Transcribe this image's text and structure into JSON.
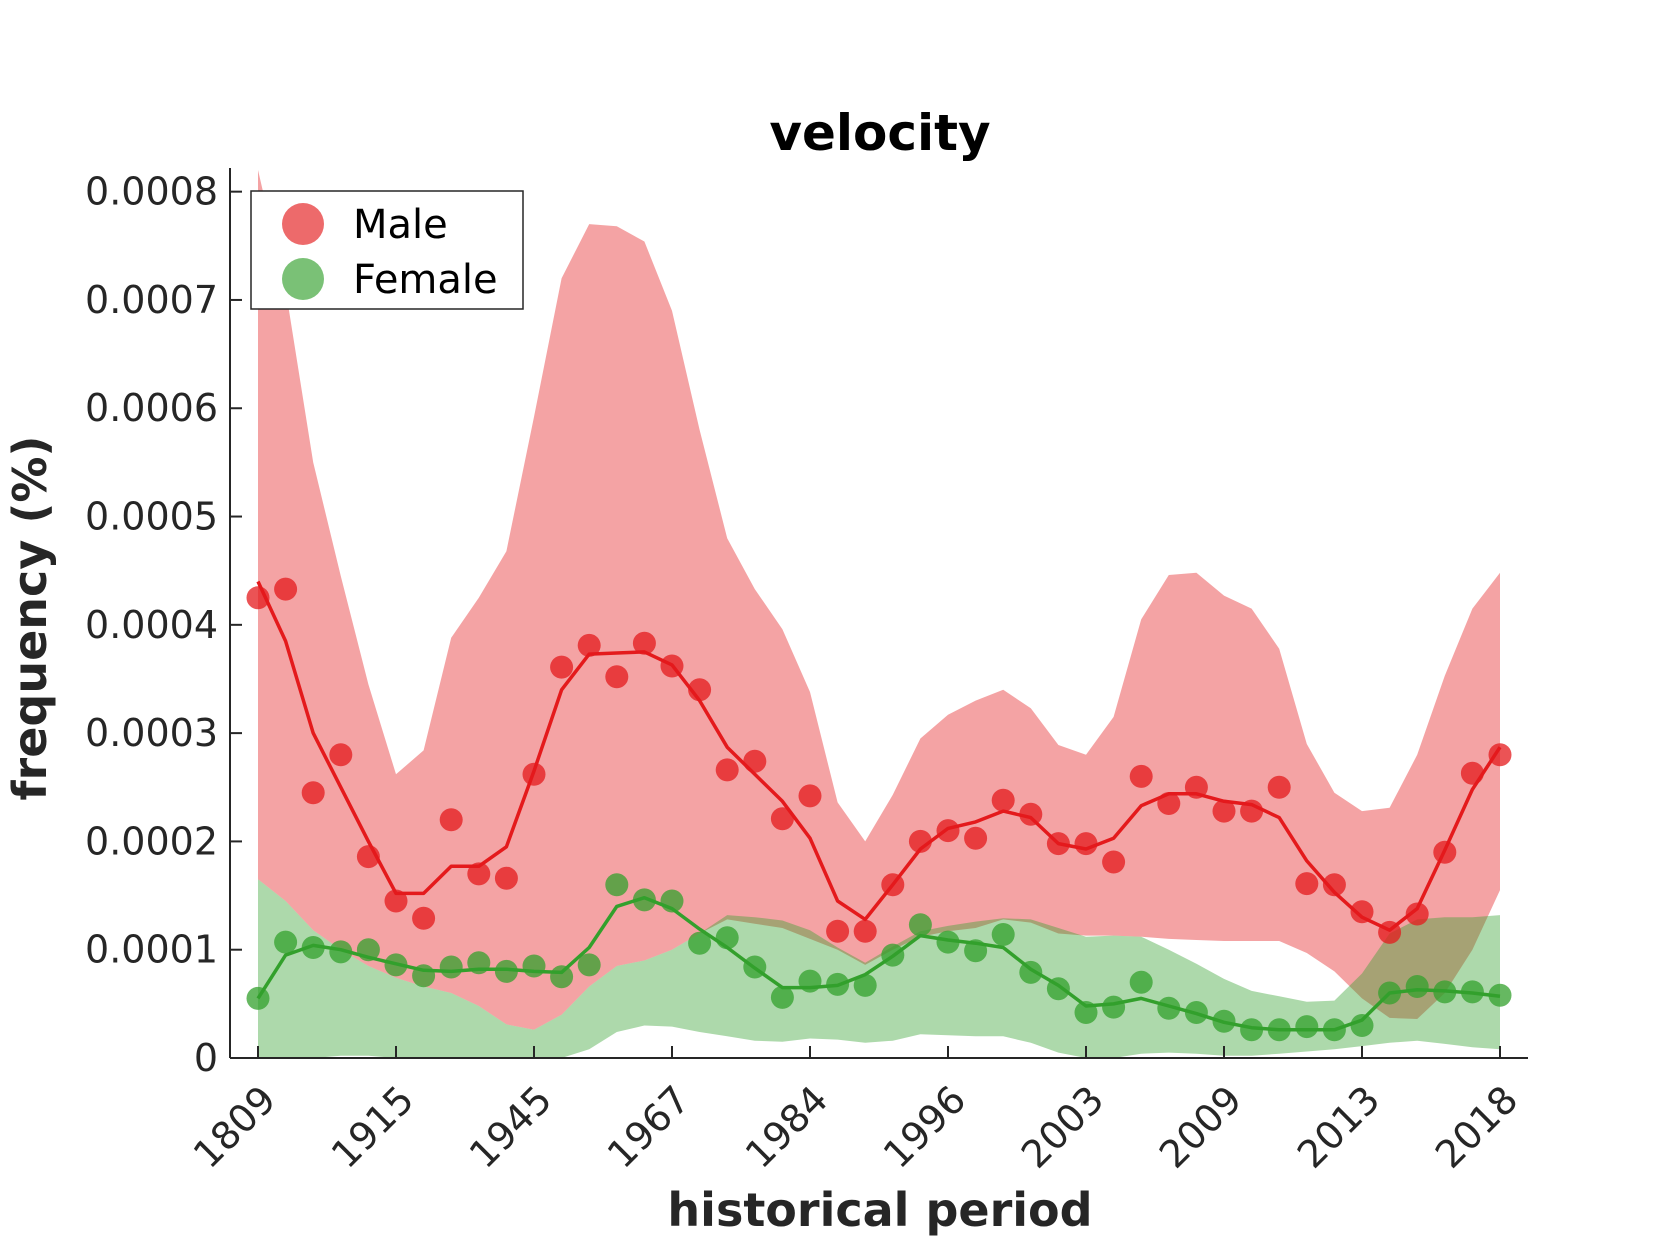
{
  "chart_data": {
    "type": "line",
    "title": "velocity",
    "xlabel": "historical period",
    "ylabel": "frequency (%)",
    "ylim": [
      0,
      0.00082
    ],
    "yticks": [
      0,
      0.0001,
      0.0002,
      0.0003,
      0.0004,
      0.0005,
      0.0006,
      0.0007,
      0.0008
    ],
    "ytick_labels": [
      "0",
      "0.0001",
      "0.0002",
      "0.0003",
      "0.0004",
      "0.0005",
      "0.0006",
      "0.0007",
      "0.0008"
    ],
    "x_tick_labels": [
      "1809",
      "1915",
      "1945",
      "1967",
      "1984",
      "1996",
      "2003",
      "2009",
      "2013",
      "2018"
    ],
    "x_tick_every": 5,
    "n_points": 46,
    "grid": false,
    "legend_position": "top-left",
    "series": [
      {
        "name": "Male",
        "color": "#e41a1c",
        "points": [
          0.000425,
          0.000433,
          0.000245,
          0.00028,
          0.000186,
          0.000145,
          0.000129,
          0.00022,
          0.00017,
          0.000166,
          0.000262,
          0.000361,
          0.000381,
          0.000352,
          0.000383,
          0.000362,
          0.00034,
          0.000266,
          0.000274,
          0.000221,
          0.000242,
          0.000117,
          0.000117,
          0.00016,
          0.0002,
          0.00021,
          0.000203,
          0.000238,
          0.000225,
          0.000198,
          0.000198,
          0.000181,
          0.00026,
          0.000235,
          0.00025,
          0.000228,
          0.000228,
          0.00025,
          0.000161,
          0.00016,
          0.000135,
          0.000116,
          0.000133,
          0.00019,
          0.000263,
          0.00028
        ],
        "trend": [
          0.00044,
          0.000385,
          0.0003,
          0.00025,
          0.0002,
          0.000152,
          0.000152,
          0.000177,
          0.000177,
          0.000195,
          0.000265,
          0.00034,
          0.000373,
          0.000374,
          0.000375,
          0.000363,
          0.00033,
          0.000287,
          0.000262,
          0.000237,
          0.000203,
          0.000145,
          0.000128,
          0.00016,
          0.000193,
          0.000212,
          0.000218,
          0.000228,
          0.000222,
          0.000198,
          0.000193,
          0.000203,
          0.000233,
          0.000244,
          0.000244,
          0.000237,
          0.000234,
          0.000222,
          0.000182,
          0.000153,
          0.00013,
          0.000118,
          0.000138,
          0.000192,
          0.000248,
          0.000287
        ],
        "band_upper": [
          0.00082,
          0.00071,
          0.00055,
          0.000445,
          0.000345,
          0.000262,
          0.000284,
          0.000388,
          0.000425,
          0.000468,
          0.000592,
          0.00072,
          0.00077,
          0.000768,
          0.000754,
          0.00069,
          0.00058,
          0.00048,
          0.000433,
          0.000396,
          0.000338,
          0.000236,
          0.0002,
          0.000243,
          0.000295,
          0.000317,
          0.00033,
          0.00034,
          0.000323,
          0.000289,
          0.00028,
          0.000315,
          0.000405,
          0.000446,
          0.000448,
          0.000427,
          0.000415,
          0.000378,
          0.00029,
          0.000245,
          0.000228,
          0.000231,
          0.00028,
          0.000353,
          0.000415,
          0.000448
        ],
        "band_lower": [
          0.000165,
          0.000145,
          0.000118,
          0.0001,
          8.5e-05,
          7.4e-05,
          6.6e-05,
          6e-05,
          4.8e-05,
          3.1e-05,
          2.6e-05,
          4e-05,
          6.6e-05,
          8.5e-05,
          9e-05,
          0.0001,
          0.000115,
          0.000128,
          0.000124,
          0.00012,
          0.00011,
          0.0001,
          8.6e-05,
          0.0001,
          0.000112,
          0.000117,
          0.00012,
          0.000128,
          0.000125,
          0.000115,
          0.000113,
          0.000113,
          0.000112,
          0.00011,
          0.000109,
          0.000108,
          0.000108,
          0.000108,
          9.7e-05,
          8e-05,
          5.5e-05,
          3.7e-05,
          3.6e-05,
          6e-05,
          0.0001,
          0.000155
        ]
      },
      {
        "name": "Female",
        "color": "#33a02c",
        "points": [
          5.5e-05,
          0.000107,
          0.000102,
          9.8e-05,
          0.0001,
          8.6e-05,
          7.6e-05,
          8.4e-05,
          8.8e-05,
          8e-05,
          8.5e-05,
          7.5e-05,
          8.6e-05,
          0.00016,
          0.000146,
          0.000145,
          0.000106,
          0.000111,
          8.4e-05,
          5.6e-05,
          7.1e-05,
          6.8e-05,
          6.7e-05,
          9.5e-05,
          0.000123,
          0.000107,
          9.9e-05,
          0.000114,
          7.9e-05,
          6.4e-05,
          4.2e-05,
          4.7e-05,
          7e-05,
          4.6e-05,
          4.2e-05,
          3.4e-05,
          2.6e-05,
          2.6e-05,
          2.9e-05,
          2.6e-05,
          3e-05,
          6e-05,
          6.6e-05,
          6.1e-05,
          6.1e-05,
          5.8e-05
        ],
        "trend": [
          5.5e-05,
          9.5e-05,
          0.000104,
          0.0001,
          9.3e-05,
          8.7e-05,
          8.1e-05,
          8e-05,
          8.2e-05,
          8.2e-05,
          8e-05,
          7.9e-05,
          0.000102,
          0.00014,
          0.000148,
          0.000138,
          0.000119,
          0.000102,
          8.3e-05,
          6.5e-05,
          6.5e-05,
          6.7e-05,
          7.7e-05,
          9.4e-05,
          0.000113,
          0.000109,
          0.000106,
          0.000102,
          8.2e-05,
          6.7e-05,
          4.8e-05,
          5e-05,
          5.5e-05,
          4.8e-05,
          4.1e-05,
          3.3e-05,
          2.8e-05,
          2.6e-05,
          2.6e-05,
          2.6e-05,
          3.5e-05,
          6e-05,
          6.3e-05,
          6.2e-05,
          6e-05,
          5.7e-05
        ],
        "band_upper": [
          0.000165,
          0.000145,
          0.000118,
          0.0001,
          8.5e-05,
          7.4e-05,
          6.6e-05,
          6e-05,
          4.8e-05,
          3.1e-05,
          2.6e-05,
          4e-05,
          6.6e-05,
          8.5e-05,
          9e-05,
          0.0001,
          0.000115,
          0.000132,
          0.00013,
          0.000127,
          0.000118,
          0.000102,
          8.8e-05,
          0.000103,
          0.000117,
          0.000122,
          0.000126,
          0.000129,
          0.000128,
          0.00012,
          0.000112,
          0.000113,
          0.000112,
          0.0001,
          8.7e-05,
          7.3e-05,
          6.2e-05,
          5.7e-05,
          5.2e-05,
          5.3e-05,
          7.8e-05,
          0.000115,
          0.000128,
          0.00013,
          0.00013,
          0.000132
        ],
        "band_lower": [
          0.0,
          0.0,
          0.0,
          2e-06,
          2e-06,
          0.0,
          0.0,
          0.0,
          0.0,
          0.0,
          0.0,
          0.0,
          8e-06,
          2.4e-05,
          3e-05,
          2.9e-05,
          2.4e-05,
          2e-05,
          1.6e-05,
          1.5e-05,
          1.8e-05,
          1.7e-05,
          1.4e-05,
          1.6e-05,
          2.2e-05,
          2.1e-05,
          2e-05,
          2e-05,
          1.4e-05,
          5e-06,
          0.0,
          0.0,
          4e-06,
          5e-06,
          4e-06,
          2e-06,
          2e-06,
          4e-06,
          6e-06,
          8e-06,
          1.1e-05,
          1.4e-05,
          1.6e-05,
          1.3e-05,
          1e-05,
          8e-06
        ]
      }
    ]
  }
}
